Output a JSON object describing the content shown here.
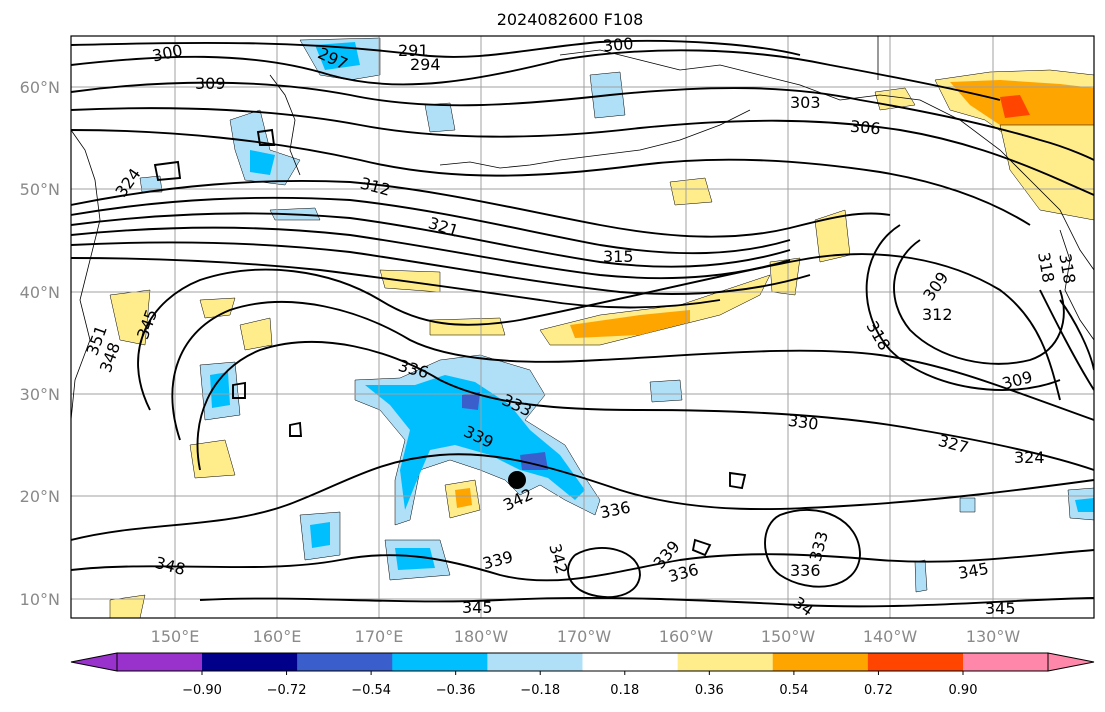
{
  "title": "2024082600 F108",
  "map": {
    "lat_ticks": [
      "60°N",
      "50°N",
      "40°N",
      "30°N",
      "20°N",
      "10°N"
    ],
    "lon_ticks": [
      "150°E",
      "160°E",
      "170°E",
      "180°W",
      "170°W",
      "160°W",
      "150°W",
      "140°W",
      "130°W"
    ],
    "contour_labels": [
      {
        "text": "300"
      },
      {
        "text": "297"
      },
      {
        "text": "291"
      },
      {
        "text": "294"
      },
      {
        "text": "300"
      },
      {
        "text": "309"
      },
      {
        "text": "303"
      },
      {
        "text": "306"
      },
      {
        "text": "324"
      },
      {
        "text": "312"
      },
      {
        "text": "321"
      },
      {
        "text": "315"
      },
      {
        "text": "309"
      },
      {
        "text": "318"
      },
      {
        "text": "312"
      },
      {
        "text": "318"
      },
      {
        "text": "351"
      },
      {
        "text": "348"
      },
      {
        "text": "345"
      },
      {
        "text": "318"
      },
      {
        "text": "336"
      },
      {
        "text": "333"
      },
      {
        "text": "339"
      },
      {
        "text": "330"
      },
      {
        "text": "327"
      },
      {
        "text": "324"
      },
      {
        "text": "309"
      },
      {
        "text": "342"
      },
      {
        "text": "336"
      },
      {
        "text": "339"
      },
      {
        "text": "342"
      },
      {
        "text": "339"
      },
      {
        "text": "336"
      },
      {
        "text": "333"
      },
      {
        "text": "336"
      },
      {
        "text": "345"
      },
      {
        "text": "348"
      },
      {
        "text": "345"
      },
      {
        "text": "34"
      },
      {
        "text": "345"
      }
    ],
    "marker": "storm-center-dot"
  },
  "colorbar": {
    "ticks": [
      "−0.90",
      "−0.72",
      "−0.54",
      "−0.36",
      "−0.18",
      "0.18",
      "0.36",
      "0.54",
      "0.72",
      "0.90"
    ],
    "colors": [
      "#9932cc",
      "#00008b",
      "#3a5fcd",
      "#00bfff",
      "#afe0f8",
      "#ffffff",
      "#ffec8b",
      "#ffa500",
      "#ff4500",
      "#b22222",
      "#ff88aa"
    ]
  }
}
